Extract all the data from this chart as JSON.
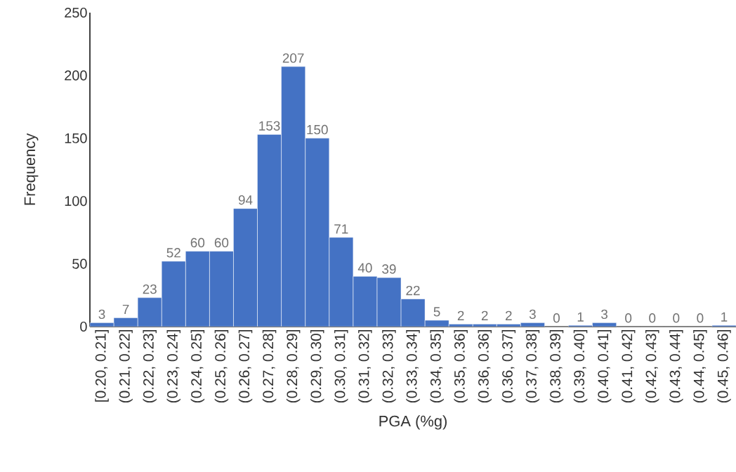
{
  "chart_data": {
    "type": "bar",
    "xlabel": "PGA (%g)",
    "ylabel": "Frequency",
    "categories": [
      "[0.20, 0.21]",
      "(0.21, 0.22]",
      "(0.22, 0.23]",
      "(0.23, 0.24]",
      "(0.24, 0.25]",
      "(0.25, 0.26]",
      "(0.26, 0.27]",
      "(0.27, 0.28]",
      "(0.28, 0.29]",
      "(0.29, 0.30]",
      "(0.30, 0.31]",
      "(0.31, 0.32]",
      "(0.32, 0.33]",
      "(0.33, 0.34]",
      "(0.34, 0.35]",
      "(0.35, 0.36]",
      "(0.36, 0.36]",
      "(0.36, 0.37]",
      "(0.37, 0.38]",
      "(0.38, 0.39]",
      "(0.39, 0.40]",
      "(0.40, 0.41]",
      "(0.41, 0.42]",
      "(0.42, 0.43]",
      "(0.43, 0.44]",
      "(0.44, 0.45]",
      "(0.45, 0.46]"
    ],
    "values": [
      3,
      7,
      23,
      52,
      60,
      60,
      94,
      153,
      207,
      150,
      71,
      40,
      39,
      22,
      5,
      2,
      2,
      2,
      3,
      0,
      1,
      3,
      0,
      0,
      0,
      0,
      1
    ],
    "color": "#4472c4",
    "ylim": [
      0,
      250
    ],
    "yticks": [
      0,
      50,
      100,
      150,
      200,
      250
    ],
    "data_labels": true
  }
}
